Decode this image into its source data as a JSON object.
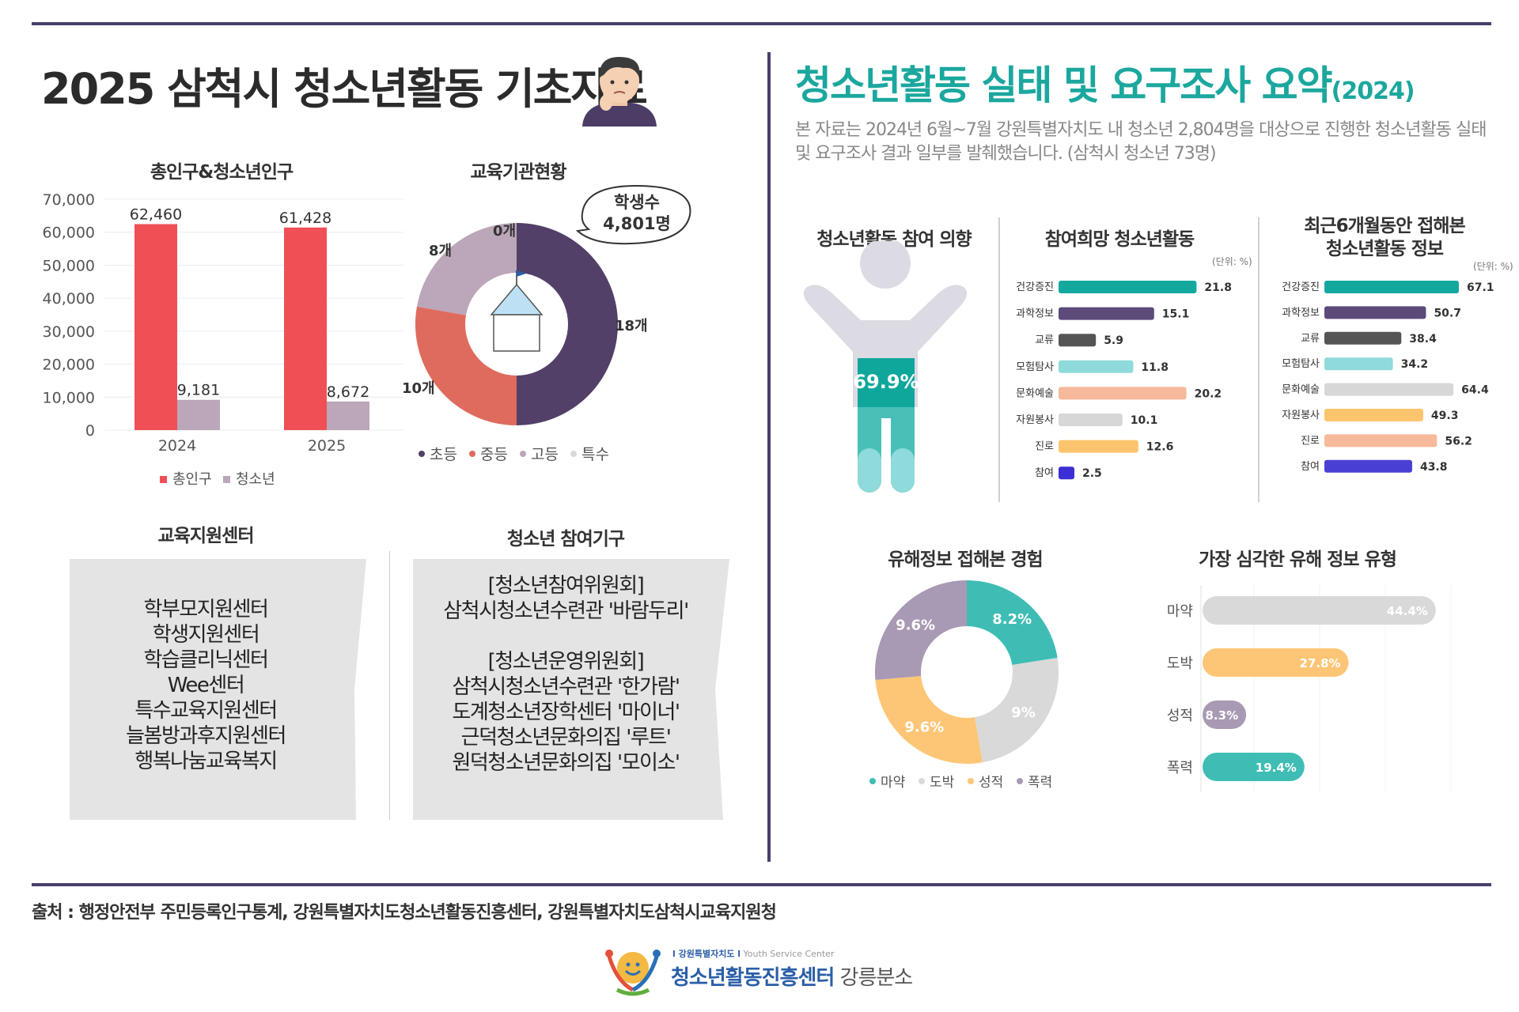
{
  "left_title": "2025 삼척시 청소년활동 기초자료",
  "right_title": "청소년활동 실태 및 요구조사 요약",
  "right_title_year": "(2024)",
  "intro_text": "본 자료는 2024년 6월~7월 강원특별자치도 내 청소년 2,804명을 대상으로 진행한 청소년활동 실태 및 요구조사 결과 일부를 발췌했습니다. (삼척시 청소년 73명)",
  "population": {
    "title": "총인구&청소년인구",
    "legend": [
      "총인구",
      "청소년"
    ],
    "colors": [
      "#f04f55",
      "#bca6b9"
    ]
  },
  "schools": {
    "title": "교육기관현황",
    "bubble_line1": "학생수",
    "bubble_line2": "4,801명",
    "labels": [
      "18개",
      "10개",
      "8개",
      "0개"
    ],
    "legend": [
      "초등",
      "중등",
      "고등",
      "특수"
    ],
    "colors": [
      "#524068",
      "#df6b5e",
      "#bca6b9",
      "#d8d8d8"
    ]
  },
  "support_center": {
    "title": "교육지원센터",
    "items": [
      "학부모지원센터",
      "학생지원센터",
      "학습클리닉센터",
      "Wee센터",
      "특수교육지원센터",
      "늘봄방과후지원센터",
      "행복나눔교육복지"
    ]
  },
  "participation_orgs": {
    "title": "청소년 참여기구",
    "lines": [
      "[청소년참여위원회]",
      "삼척시청소년수련관 '바람두리'",
      "",
      "[청소년운영위원회]",
      "삼척시청소년수련관 '한가람'",
      "도계청소년장학센터 '마이너'",
      "근덕청소년문화의집 '루트'",
      "원덕청소년문화의집 '모이소'"
    ]
  },
  "intention": {
    "title": "청소년활동 참여 의향",
    "value_label": "69.9%",
    "value": 69.9
  },
  "desired": {
    "title": "참여희망 청소년활동",
    "unit": "(단위: %)"
  },
  "info": {
    "title_line1": "최근6개월동안 접해본",
    "title_line2": "청소년활동 정보",
    "unit": "(단위: %)"
  },
  "harmful": {
    "title": "유해정보 접해본 경험",
    "labels": [
      "8.2%",
      "9%",
      "9.6%",
      "9.6%"
    ],
    "legend": [
      "마약",
      "도박",
      "성적",
      "폭력"
    ],
    "colors": [
      "#3fbdb5",
      "#d9d9d9",
      "#fdc676",
      "#a899b4"
    ]
  },
  "serious": {
    "title": "가장 심각한 유해 정보 유형"
  },
  "source_text": "출처 :  행정안전부 주민등록인구통계, 강원특별자치도청소년활동진흥센터, 강원특별자치도삼척시교육지원청",
  "logo": {
    "small_line": "l 강원특별자치도 l",
    "small_eng": "Youth Service Center",
    "main": "청소년활동진흥센터",
    "branch": "강릉분소"
  },
  "chart_data": [
    {
      "type": "bar",
      "title": "총인구&청소년인구",
      "categories": [
        "2024",
        "2025"
      ],
      "series": [
        {
          "name": "총인구",
          "values": [
            62460,
            61428
          ],
          "value_labels": [
            "62,460",
            "61,428"
          ]
        },
        {
          "name": "청소년",
          "values": [
            9181,
            8672
          ],
          "value_labels": [
            "9,181",
            "8,672"
          ]
        }
      ],
      "ylim": [
        0,
        70000
      ],
      "yticks": [
        "0",
        "10,000",
        "20,000",
        "30,000",
        "40,000",
        "50,000",
        "60,000",
        "70,000"
      ],
      "legend": "bottom"
    },
    {
      "type": "pie",
      "title": "교육기관현황",
      "categories": [
        "초등",
        "중등",
        "고등",
        "특수"
      ],
      "values": [
        18,
        10,
        8,
        0
      ]
    },
    {
      "type": "bar",
      "title": "참여희망 청소년활동",
      "categories": [
        "건강증진",
        "과학정보",
        "교류",
        "모험탐사",
        "문화예술",
        "자원봉사",
        "진로",
        "참여"
      ],
      "values": [
        21.8,
        15.1,
        5.9,
        11.8,
        20.2,
        10.1,
        12.6,
        2.5
      ],
      "colors": [
        "#13a89e",
        "#5b4a7a",
        "#555555",
        "#8fdada",
        "#f6b99b",
        "#d7d7d7",
        "#fcc46c",
        "#3c2fd5"
      ],
      "xlim": [
        0,
        25
      ]
    },
    {
      "type": "bar",
      "title": "최근6개월동안 접해본 청소년활동 정보",
      "categories": [
        "건강증진",
        "과학정보",
        "교류",
        "모험탐사",
        "문화예술",
        "자원봉사",
        "진로",
        "참여"
      ],
      "values": [
        67.1,
        50.7,
        38.4,
        34.2,
        64.4,
        49.3,
        56.2,
        43.8
      ],
      "colors": [
        "#13a89e",
        "#5b4a7a",
        "#555555",
        "#8fdada",
        "#d7d7d7",
        "#fcc46c",
        "#f6b99b",
        "#4a3fd5"
      ],
      "xlim": [
        0,
        75
      ]
    },
    {
      "type": "pie",
      "title": "유해정보 접해본 경험",
      "categories": [
        "마약",
        "도박",
        "성적",
        "폭력"
      ],
      "values": [
        8.2,
        9,
        9.6,
        9.6
      ]
    },
    {
      "type": "bar",
      "title": "가장 심각한 유해 정보 유형",
      "categories": [
        "마약",
        "도박",
        "성적",
        "폭력"
      ],
      "values": [
        44.4,
        27.8,
        8.3,
        19.4
      ],
      "value_labels": [
        "44.4%",
        "27.8%",
        "8.3%",
        "19.4%"
      ],
      "colors": [
        "#d9d9d9",
        "#fdc676",
        "#a899b4",
        "#3fbdb5"
      ],
      "xlim": [
        0,
        50
      ]
    }
  ]
}
